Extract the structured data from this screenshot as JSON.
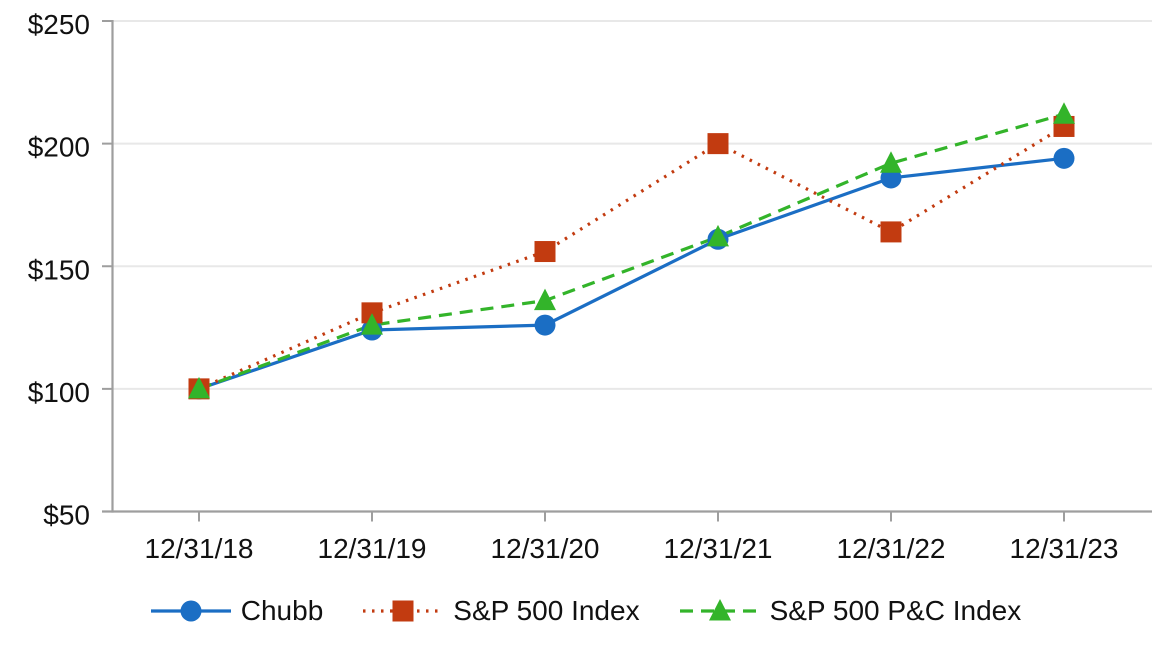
{
  "chart_data": {
    "type": "line",
    "title": "",
    "xlabel": "",
    "ylabel": "",
    "categories": [
      "12/31/18",
      "12/31/19",
      "12/31/20",
      "12/31/21",
      "12/31/22",
      "12/31/23"
    ],
    "series": [
      {
        "name": "Chubb",
        "color": "#1B6EC4",
        "marker": "circle",
        "line_style": "solid",
        "values": [
          100,
          124,
          126,
          161,
          186,
          194
        ]
      },
      {
        "name": "S&P 500 Index",
        "color": "#C23B10",
        "marker": "square",
        "line_style": "dotted",
        "values": [
          100,
          131,
          156,
          200,
          164,
          207
        ]
      },
      {
        "name": "S&P 500 P&C Index",
        "color": "#33B42A",
        "marker": "triangle",
        "line_style": "dashed",
        "values": [
          100,
          126,
          136,
          162,
          192,
          212
        ]
      }
    ],
    "ylim": [
      50,
      250
    ],
    "ytick_values": [
      50,
      100,
      150,
      200,
      250
    ],
    "ytick_labels": [
      "$50",
      "$100",
      "$150",
      "$200",
      "$250"
    ],
    "grid": true,
    "legend_position": "bottom"
  },
  "colors": {
    "background": "#FFFFFF",
    "grid": "#E8E8E8",
    "axis": "#9E9E9E",
    "text": "#111111"
  }
}
